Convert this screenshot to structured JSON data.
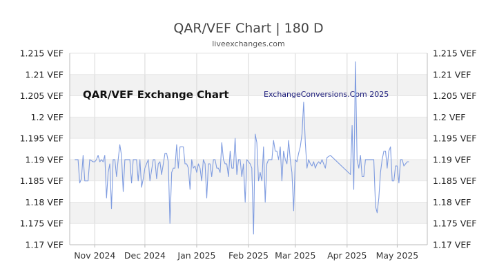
{
  "header": {
    "title": "QAR/VEF Chart | 180 D",
    "subtitle": "liveexchanges.com"
  },
  "chart_data": {
    "type": "line",
    "title": "QAR/VEF Chart | 180 D",
    "inner_title": "QAR/VEF Exchange Chart",
    "watermark": "ExchangeConversions.Com 2025",
    "xlabel": "",
    "ylabel": "",
    "ylim": [
      1.17,
      1.215
    ],
    "y_ticks": [
      1.17,
      1.175,
      1.18,
      1.185,
      1.19,
      1.195,
      1.2,
      1.205,
      1.21,
      1.215
    ],
    "y_tick_labels": [
      "1.17 VEF",
      "1.175 VEF",
      "1.18 VEF",
      "1.185 VEF",
      "1.19 VEF",
      "1.195 VEF",
      "1.2 VEF",
      "1.205 VEF",
      "1.21 VEF",
      "1.215 VEF"
    ],
    "x_start": "2024-10-17",
    "x_end": "2025-05-19",
    "x_ticks": [
      {
        "date": "2024-11-01",
        "label": "Nov 2024"
      },
      {
        "date": "2024-12-01",
        "label": "Dec 2024"
      },
      {
        "date": "2025-01-01",
        "label": "Jan 2025"
      },
      {
        "date": "2025-02-01",
        "label": "Feb 2025"
      },
      {
        "date": "2025-03-01",
        "label": "Mar 2025"
      },
      {
        "date": "2025-04-01",
        "label": "Apr 2025"
      },
      {
        "date": "2025-05-01",
        "label": "May 2025"
      }
    ],
    "grid": true,
    "line_color": "#7f9ce0",
    "band_color": "#f2f2f2",
    "series": [
      {
        "x": [
          "2024-10-20",
          "2024-10-21",
          "2024-10-22",
          "2024-10-23",
          "2024-10-24",
          "2024-10-25",
          "2024-10-26",
          "2024-10-27",
          "2024-10-28",
          "2024-10-29",
          "2024-10-31",
          "2024-11-01",
          "2024-11-02",
          "2024-11-03",
          "2024-11-04",
          "2024-11-05",
          "2024-11-06",
          "2024-11-07",
          "2024-11-08",
          "2024-11-09",
          "2024-11-10",
          "2024-11-11",
          "2024-11-12",
          "2024-11-13",
          "2024-11-14",
          "2024-11-15",
          "2024-11-16",
          "2024-11-17",
          "2024-11-18",
          "2024-11-19",
          "2024-11-21",
          "2024-11-22",
          "2024-11-23",
          "2024-11-24",
          "2024-11-25",
          "2024-11-26",
          "2024-11-27",
          "2024-11-28",
          "2024-11-29",
          "2024-11-30",
          "2024-12-01",
          "2024-12-02",
          "2024-12-03",
          "2024-12-04",
          "2024-12-05",
          "2024-12-06",
          "2024-12-07",
          "2024-12-08",
          "2024-12-09",
          "2024-12-10",
          "2024-12-11",
          "2024-12-12",
          "2024-12-13",
          "2024-12-14",
          "2024-12-15",
          "2024-12-16",
          "2024-12-17",
          "2024-12-18",
          "2024-12-19",
          "2024-12-20",
          "2024-12-21",
          "2024-12-22",
          "2024-12-23",
          "2024-12-24",
          "2024-12-25",
          "2024-12-26",
          "2024-12-27",
          "2024-12-28",
          "2024-12-29",
          "2024-12-30",
          "2024-12-31",
          "2025-01-01",
          "2025-01-02",
          "2025-01-03",
          "2025-01-04",
          "2025-01-05",
          "2025-01-06",
          "2025-01-07",
          "2025-01-08",
          "2025-01-09",
          "2025-01-10",
          "2025-01-11",
          "2025-01-12",
          "2025-01-13",
          "2025-01-14",
          "2025-01-15",
          "2025-01-16",
          "2025-01-17",
          "2025-01-18",
          "2025-01-19",
          "2025-01-20",
          "2025-01-21",
          "2025-01-22",
          "2025-01-23",
          "2025-01-24",
          "2025-01-25",
          "2025-01-26",
          "2025-01-27",
          "2025-01-28",
          "2025-01-29",
          "2025-01-30",
          "2025-01-31",
          "2025-02-01",
          "2025-02-02",
          "2025-02-03",
          "2025-02-04",
          "2025-02-05",
          "2025-02-06",
          "2025-02-07",
          "2025-02-08",
          "2025-02-09",
          "2025-02-10",
          "2025-02-11",
          "2025-02-12",
          "2025-02-13",
          "2025-02-14",
          "2025-02-15",
          "2025-02-16",
          "2025-02-17",
          "2025-02-18",
          "2025-02-19",
          "2025-02-20",
          "2025-02-21",
          "2025-02-22",
          "2025-02-23",
          "2025-02-24",
          "2025-02-25",
          "2025-02-26",
          "2025-02-27",
          "2025-02-28",
          "2025-03-01",
          "2025-03-02",
          "2025-03-03",
          "2025-03-04",
          "2025-03-05",
          "2025-03-06",
          "2025-03-07",
          "2025-03-08",
          "2025-03-09",
          "2025-03-10",
          "2025-03-11",
          "2025-03-12",
          "2025-03-13",
          "2025-03-14",
          "2025-03-15",
          "2025-03-16",
          "2025-03-17",
          "2025-03-18",
          "2025-03-19",
          "2025-03-20",
          "2025-03-22",
          "2025-04-03",
          "2025-04-04",
          "2025-04-05",
          "2025-04-06",
          "2025-04-07",
          "2025-04-08",
          "2025-04-09",
          "2025-04-10",
          "2025-04-11",
          "2025-04-12",
          "2025-04-13",
          "2025-04-14",
          "2025-04-15",
          "2025-04-16",
          "2025-04-17",
          "2025-04-18",
          "2025-04-19",
          "2025-04-20",
          "2025-04-21",
          "2025-04-22",
          "2025-04-23",
          "2025-04-24",
          "2025-04-25",
          "2025-04-26",
          "2025-04-27",
          "2025-04-28",
          "2025-04-29",
          "2025-04-30",
          "2025-05-01",
          "2025-05-02",
          "2025-05-03",
          "2025-05-04",
          "2025-05-05",
          "2025-05-06",
          "2025-05-07",
          "2025-05-08"
        ],
        "values": [
          1.19,
          1.19,
          1.19,
          1.1845,
          1.1855,
          1.191,
          1.185,
          1.185,
          1.185,
          1.19,
          1.1895,
          1.1895,
          1.19,
          1.191,
          1.1895,
          1.19,
          1.1895,
          1.191,
          1.181,
          1.187,
          1.189,
          1.1785,
          1.19,
          1.19,
          1.186,
          1.19,
          1.1935,
          1.191,
          1.1825,
          1.19,
          1.19,
          1.19,
          1.1845,
          1.19,
          1.19,
          1.19,
          1.185,
          1.19,
          1.1835,
          1.1855,
          1.188,
          1.189,
          1.19,
          1.185,
          1.1875,
          1.19,
          1.19,
          1.1855,
          1.189,
          1.1895,
          1.1865,
          1.189,
          1.1915,
          1.1915,
          1.1895,
          1.175,
          1.187,
          1.188,
          1.188,
          1.1935,
          1.188,
          1.193,
          1.193,
          1.193,
          1.189,
          1.189,
          1.188,
          1.183,
          1.19,
          1.188,
          1.1885,
          1.187,
          1.189,
          1.188,
          1.185,
          1.19,
          1.189,
          1.181,
          1.189,
          1.189,
          1.186,
          1.19,
          1.19,
          1.188,
          1.188,
          1.187,
          1.194,
          1.19,
          1.189,
          1.189,
          1.186,
          1.192,
          1.188,
          1.188,
          1.195,
          1.1865,
          1.19,
          1.19,
          1.186,
          1.189,
          1.18,
          1.19,
          1.1895,
          1.189,
          1.188,
          1.1725,
          1.196,
          1.194,
          1.185,
          1.187,
          1.185,
          1.193,
          1.18,
          1.189,
          1.19,
          1.19,
          1.19,
          1.1945,
          1.192,
          1.192,
          1.19,
          1.193,
          1.185,
          1.192,
          1.19,
          1.189,
          1.1945,
          1.19,
          1.187,
          1.178,
          1.19,
          1.1895,
          1.1915,
          1.193,
          1.196,
          1.2035,
          1.194,
          1.188,
          1.19,
          1.189,
          1.1885,
          1.1895,
          1.188,
          1.189,
          1.1895,
          1.189,
          1.19,
          1.189,
          1.188,
          1.1905,
          1.191,
          1.1865,
          1.198,
          1.183,
          1.213,
          1.19,
          1.188,
          1.191,
          1.186,
          1.186,
          1.19,
          1.19,
          1.19,
          1.19,
          1.19,
          1.19,
          1.179,
          1.1775,
          1.181,
          1.187,
          1.19,
          1.192,
          1.192,
          1.188,
          1.192,
          1.193,
          1.185,
          1.185,
          1.1885,
          1.1885,
          1.1845,
          1.19,
          1.19,
          1.1885,
          1.189,
          1.1895,
          1.1895
        ]
      }
    ]
  }
}
